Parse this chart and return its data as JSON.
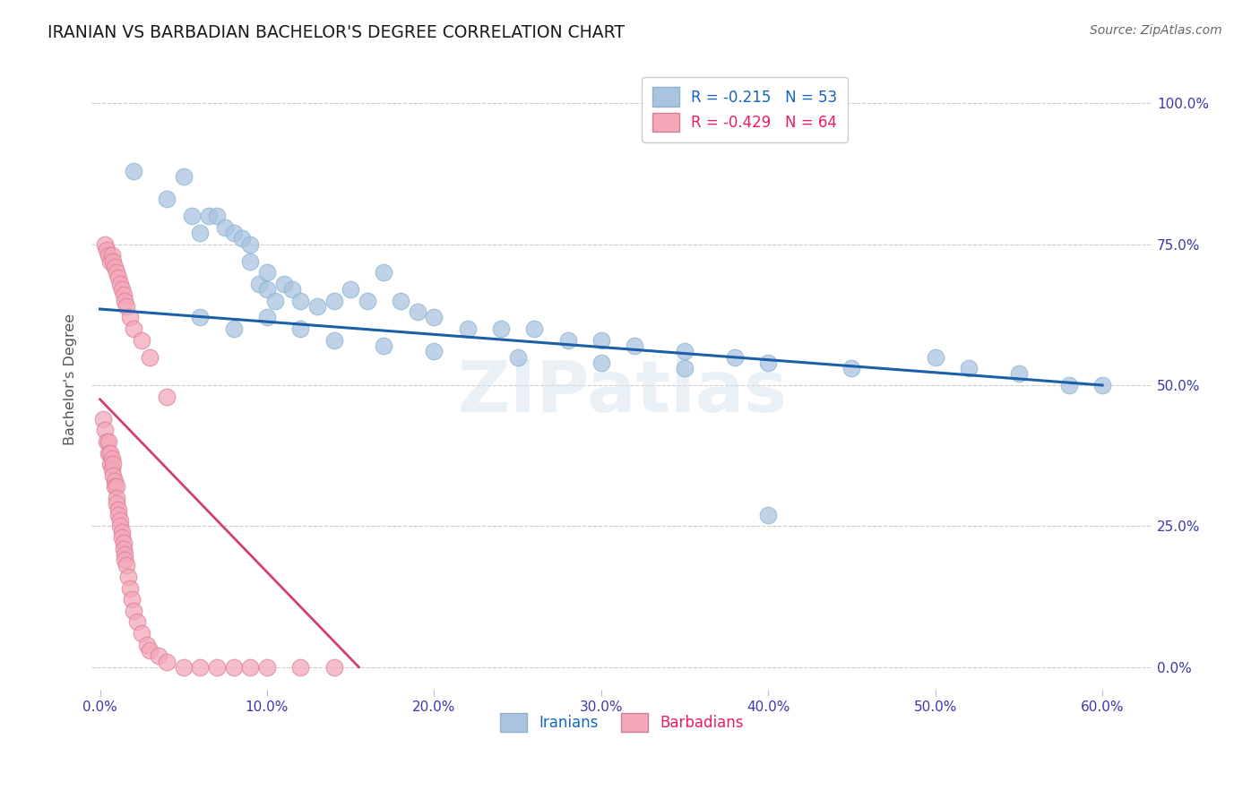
{
  "title": "IRANIAN VS BARBADIAN BACHELOR'S DEGREE CORRELATION CHART",
  "source": "Source: ZipAtlas.com",
  "ylabel": "Bachelor's Degree",
  "xlabel_ticks": [
    "0.0%",
    "10.0%",
    "20.0%",
    "30.0%",
    "40.0%",
    "50.0%",
    "60.0%"
  ],
  "ytick_labels": [
    "0.0%",
    "25.0%",
    "50.0%",
    "75.0%",
    "100.0%"
  ],
  "ytick_values": [
    0.0,
    0.25,
    0.5,
    0.75,
    1.0
  ],
  "xtick_values": [
    0.0,
    0.1,
    0.2,
    0.3,
    0.4,
    0.5,
    0.6
  ],
  "xlim": [
    -0.005,
    0.63
  ],
  "ylim": [
    -0.04,
    1.06
  ],
  "blue_line_start_x": 0.0,
  "blue_line_start_y": 0.635,
  "blue_line_end_x": 0.6,
  "blue_line_end_y": 0.5,
  "pink_line_start_x": 0.0,
  "pink_line_start_y": 0.475,
  "pink_line_end_x": 0.155,
  "pink_line_end_y": 0.0,
  "watermark": "ZIPatlas",
  "iranians_x": [
    0.02,
    0.04,
    0.05,
    0.055,
    0.06,
    0.065,
    0.07,
    0.075,
    0.08,
    0.085,
    0.09,
    0.09,
    0.095,
    0.1,
    0.1,
    0.105,
    0.11,
    0.115,
    0.12,
    0.13,
    0.14,
    0.15,
    0.16,
    0.17,
    0.18,
    0.19,
    0.2,
    0.22,
    0.24,
    0.26,
    0.28,
    0.3,
    0.32,
    0.35,
    0.38,
    0.4,
    0.45,
    0.5,
    0.52,
    0.55,
    0.06,
    0.08,
    0.1,
    0.12,
    0.14,
    0.17,
    0.2,
    0.25,
    0.3,
    0.35,
    0.58,
    0.6,
    0.4
  ],
  "iranians_y": [
    0.88,
    0.83,
    0.87,
    0.8,
    0.77,
    0.8,
    0.8,
    0.78,
    0.77,
    0.76,
    0.75,
    0.72,
    0.68,
    0.7,
    0.67,
    0.65,
    0.68,
    0.67,
    0.65,
    0.64,
    0.65,
    0.67,
    0.65,
    0.7,
    0.65,
    0.63,
    0.62,
    0.6,
    0.6,
    0.6,
    0.58,
    0.58,
    0.57,
    0.56,
    0.55,
    0.54,
    0.53,
    0.55,
    0.53,
    0.52,
    0.62,
    0.6,
    0.62,
    0.6,
    0.58,
    0.57,
    0.56,
    0.55,
    0.54,
    0.53,
    0.5,
    0.5,
    0.27
  ],
  "barbadians_x": [
    0.002,
    0.003,
    0.004,
    0.005,
    0.005,
    0.006,
    0.006,
    0.007,
    0.007,
    0.008,
    0.008,
    0.009,
    0.009,
    0.01,
    0.01,
    0.01,
    0.011,
    0.011,
    0.012,
    0.012,
    0.013,
    0.013,
    0.014,
    0.014,
    0.015,
    0.015,
    0.016,
    0.017,
    0.018,
    0.019,
    0.02,
    0.022,
    0.025,
    0.028,
    0.03,
    0.035,
    0.04,
    0.05,
    0.06,
    0.07,
    0.08,
    0.09,
    0.1,
    0.12,
    0.14,
    0.003,
    0.004,
    0.005,
    0.006,
    0.007,
    0.008,
    0.009,
    0.01,
    0.011,
    0.012,
    0.013,
    0.014,
    0.015,
    0.016,
    0.018,
    0.02,
    0.025,
    0.03,
    0.04
  ],
  "barbadians_y": [
    0.44,
    0.42,
    0.4,
    0.4,
    0.38,
    0.38,
    0.36,
    0.37,
    0.35,
    0.36,
    0.34,
    0.33,
    0.32,
    0.32,
    0.3,
    0.29,
    0.28,
    0.27,
    0.26,
    0.25,
    0.24,
    0.23,
    0.22,
    0.21,
    0.2,
    0.19,
    0.18,
    0.16,
    0.14,
    0.12,
    0.1,
    0.08,
    0.06,
    0.04,
    0.03,
    0.02,
    0.01,
    0.0,
    0.0,
    0.0,
    0.0,
    0.0,
    0.0,
    0.0,
    0.0,
    0.75,
    0.74,
    0.73,
    0.72,
    0.73,
    0.72,
    0.71,
    0.7,
    0.69,
    0.68,
    0.67,
    0.66,
    0.65,
    0.64,
    0.62,
    0.6,
    0.58,
    0.55,
    0.48
  ],
  "legend_blue_label": "R = -0.215   N = 53",
  "legend_pink_label": "R = -0.429   N = 64",
  "legend_blue_color": "#aac4e0",
  "legend_pink_color": "#f4a7b9",
  "text_blue_color": "#1565c0",
  "text_pink_color": "#e91e63",
  "scatter_blue_color": "#aac4e0",
  "scatter_blue_edge": "#8ab4d0",
  "scatter_pink_color": "#f4a7b9",
  "scatter_pink_edge": "#d88098",
  "line_blue_color": "#1a5fa8",
  "line_pink_color": "#d04070",
  "grid_color": "#cccccc",
  "tick_color": "#3a3aaa"
}
